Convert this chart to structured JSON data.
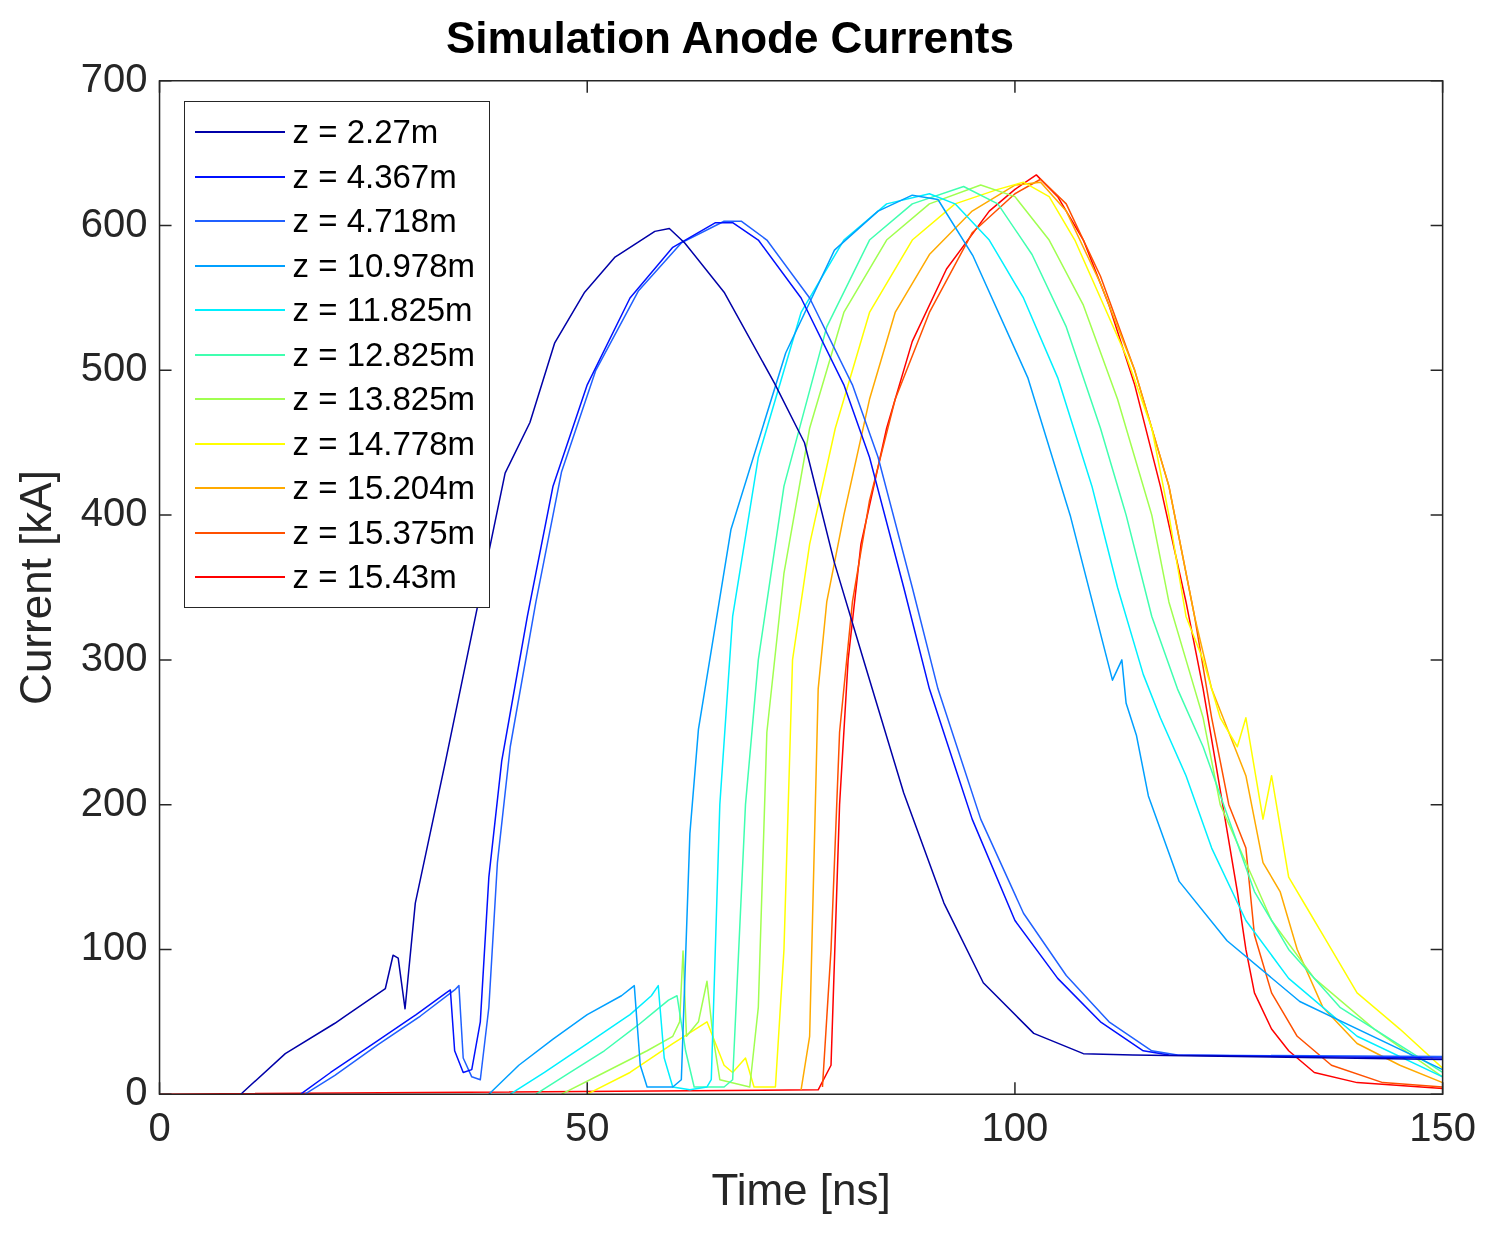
{
  "chart_data": {
    "type": "line",
    "title": "Simulation Anode Currents",
    "xlabel": "Time [ns]",
    "ylabel": "Current [kA]",
    "xlim": [
      0,
      150
    ],
    "xticks": [
      0,
      50,
      100,
      150
    ],
    "ylim": [
      0,
      700
    ],
    "yticks": [
      0,
      100,
      200,
      300,
      400,
      500,
      600,
      700
    ],
    "grid": false,
    "legend": "top left",
    "marker": "none",
    "line_style": "solid",
    "series": [
      {
        "name": "z = 2.27m",
        "color": "#0000a8",
        "x": [
          9.5,
          14.7,
          20.5,
          26.4,
          27.3,
          27.9,
          28.7,
          29.9,
          33.4,
          40.4,
          43.3,
          46.2,
          49.7,
          53.2,
          57.9,
          59.6,
          61.4,
          66,
          71.9,
          75.4,
          78.9,
          82.4,
          87,
          91.7,
          96.3,
          102.2,
          108,
          113.8,
          150
        ],
        "values": [
          0,
          28,
          49,
          73,
          96,
          94,
          59,
          132,
          229,
          429,
          464,
          519,
          554,
          578,
          596,
          598,
          588,
          554,
          491,
          450,
          367,
          298,
          208,
          132,
          77,
          42,
          28,
          27,
          24
        ]
      },
      {
        "name": "z = 4.367m",
        "color": "#0010ff",
        "x": [
          16.5,
          20,
          25,
          30,
          33.5,
          34,
          34.5,
          35.5,
          36.5,
          37.5,
          38.5,
          40,
          43,
          46,
          50,
          55,
          60,
          65,
          67,
          70,
          75,
          80,
          83,
          87,
          90,
          95,
          100,
          105,
          110,
          115,
          118,
          150
        ],
        "values": [
          0,
          15,
          35,
          55,
          70,
          72,
          30,
          15,
          17,
          50,
          150,
          230,
          330,
          420,
          490,
          550,
          585,
          602,
          602,
          590,
          550,
          490,
          440,
          350,
          280,
          190,
          120,
          80,
          50,
          30,
          27,
          25
        ]
      },
      {
        "name": "z = 4.718m",
        "color": "#2060ff",
        "x": [
          17,
          20.5,
          25.5,
          30.5,
          34.5,
          35,
          35.5,
          36.5,
          37.5,
          38.5,
          39.5,
          41,
          44,
          47,
          51,
          56,
          61,
          66,
          68,
          71,
          76,
          81,
          84,
          88,
          91,
          96,
          101,
          106,
          111,
          116,
          119,
          150
        ],
        "values": [
          0,
          13,
          34,
          54,
          72,
          75,
          25,
          12,
          10,
          60,
          160,
          240,
          340,
          430,
          500,
          555,
          588,
          603,
          603,
          590,
          550,
          490,
          440,
          350,
          280,
          190,
          125,
          82,
          50,
          30,
          27,
          26
        ]
      },
      {
        "name": "z = 10.978m",
        "color": "#00a0ff",
        "x": [
          38.5,
          42,
          46,
          50,
          54,
          55.5,
          56.2,
          57,
          60,
          61,
          62,
          63,
          66.8,
          73.2,
          78.9,
          84,
          88,
          91,
          95.1,
          101.5,
          106.5,
          111.4,
          112.5,
          113,
          114.2,
          115.6,
          119.2,
          124.8,
          133.3,
          150
        ],
        "values": [
          0,
          20,
          38,
          55,
          68,
          75,
          20,
          5,
          5,
          10,
          180,
          252,
          390,
          512,
          583,
          610,
          621,
          618,
          579,
          495,
          399,
          286,
          300,
          270,
          248,
          206,
          147,
          106,
          64,
          17
        ]
      },
      {
        "name": "z = 11.825m",
        "color": "#00f0ff",
        "x": [
          41,
          45,
          50,
          55,
          57.5,
          58.3,
          59,
          60,
          62,
          64,
          64.5,
          65.5,
          67,
          70,
          75,
          80,
          85,
          90,
          93,
          97,
          101,
          105,
          109,
          112,
          115,
          117,
          120,
          123,
          127,
          132,
          140,
          150
        ],
        "values": [
          0,
          15,
          35,
          55,
          68,
          75,
          25,
          5,
          3,
          5,
          10,
          200,
          330,
          440,
          540,
          590,
          615,
          622,
          615,
          590,
          550,
          495,
          420,
          350,
          290,
          260,
          220,
          170,
          120,
          80,
          40,
          12
        ]
      },
      {
        "name": "z = 12.825m",
        "color": "#40ffb0",
        "x": [
          44,
          48,
          52,
          56,
          59.5,
          60.5,
          61.5,
          62.5,
          66,
          67,
          68.5,
          70,
          73,
          78,
          83,
          88,
          94,
          98,
          102,
          106,
          110,
          113,
          116,
          119,
          122,
          125,
          128,
          132,
          138,
          150
        ],
        "values": [
          0,
          15,
          30,
          48,
          65,
          68,
          30,
          5,
          5,
          10,
          200,
          300,
          420,
          530,
          590,
          615,
          627,
          615,
          580,
          530,
          460,
          400,
          330,
          280,
          240,
          190,
          140,
          100,
          60,
          15
        ]
      },
      {
        "name": "z = 13.825m",
        "color": "#a0ff50",
        "x": [
          47,
          52,
          57,
          60,
          60.8,
          61.2,
          61.6,
          63,
          64,
          64.7,
          65.5,
          69,
          70,
          71,
          73,
          76,
          80,
          85,
          90,
          96,
          100,
          104,
          108,
          112,
          116,
          118,
          120,
          122,
          124,
          127,
          130,
          135,
          142,
          150
        ],
        "values": [
          0,
          15,
          30,
          40,
          50,
          99,
          40,
          50,
          78,
          40,
          10,
          5,
          60,
          250,
          360,
          460,
          540,
          590,
          615,
          628,
          620,
          590,
          545,
          480,
          400,
          340,
          300,
          260,
          200,
          160,
          120,
          80,
          45,
          12
        ]
      },
      {
        "name": "z = 14.778m",
        "color": "#ffff00",
        "x": [
          50,
          55,
          60,
          64,
          66,
          67,
          68.5,
          69.5,
          72,
          73,
          74,
          76,
          79,
          83,
          88,
          93,
          98,
          101,
          104,
          107,
          110,
          113,
          116,
          118,
          120,
          122,
          124,
          126,
          127,
          129,
          130,
          132,
          134,
          136,
          140,
          145,
          150
        ],
        "values": [
          0,
          15,
          35,
          50,
          20,
          15,
          25,
          5,
          5,
          100,
          300,
          380,
          460,
          540,
          590,
          615,
          625,
          630,
          620,
          590,
          550,
          510,
          460,
          400,
          330,
          300,
          260,
          240,
          260,
          190,
          220,
          150,
          130,
          110,
          70,
          45,
          18
        ]
      },
      {
        "name": "z = 15.204m",
        "color": "#ffaa00",
        "x": [
          75,
          76,
          77,
          78,
          80,
          83,
          86,
          90,
          95,
          100,
          103,
          106,
          110,
          114,
          118,
          121,
          123,
          125,
          127,
          129,
          131,
          133,
          136,
          140,
          145,
          150
        ],
        "values": [
          3,
          40,
          280,
          340,
          400,
          480,
          540,
          580,
          610,
          628,
          630,
          610,
          560,
          500,
          420,
          330,
          280,
          250,
          220,
          160,
          140,
          100,
          60,
          35,
          20,
          8
        ]
      },
      {
        "name": "z = 15.375m",
        "color": "#ff5000",
        "x": [
          77.5,
          78.5,
          79.5,
          81,
          83,
          86,
          90,
          95,
          100,
          103,
          106,
          110,
          114,
          118,
          121,
          123,
          125,
          127,
          128,
          130,
          133,
          137,
          143,
          150
        ],
        "values": [
          5,
          100,
          250,
          340,
          410,
          480,
          540,
          595,
          622,
          632,
          615,
          565,
          500,
          420,
          330,
          260,
          200,
          170,
          110,
          70,
          40,
          20,
          8,
          5
        ]
      },
      {
        "name": "z = 15.43m",
        "color": "#ff0000",
        "x": [
          0,
          77,
          78.5,
          79.5,
          80.5,
          82,
          85,
          88,
          92,
          97,
          100,
          102.5,
          105,
          108,
          111,
          114,
          117,
          120,
          122,
          124,
          126,
          127,
          128,
          130,
          132,
          135,
          140,
          150
        ],
        "values": [
          0,
          3,
          20,
          200,
          300,
          380,
          460,
          520,
          570,
          610,
          625,
          635,
          620,
          590,
          545,
          490,
          420,
          340,
          280,
          210,
          140,
          100,
          70,
          45,
          30,
          15,
          8,
          4
        ]
      }
    ]
  }
}
